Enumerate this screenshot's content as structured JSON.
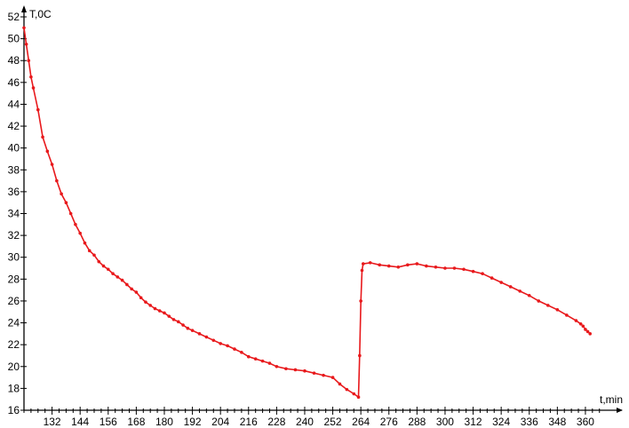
{
  "chart_data": {
    "type": "line",
    "title": "",
    "xlabel": "t,min",
    "ylabel": "T,0C",
    "xlim": [
      120,
      368
    ],
    "ylim": [
      16,
      52
    ],
    "xticks": [
      132,
      144,
      156,
      168,
      180,
      192,
      204,
      216,
      228,
      240,
      252,
      264,
      276,
      288,
      300,
      312,
      324,
      336,
      348,
      360
    ],
    "yticks": [
      16,
      18,
      20,
      22,
      24,
      26,
      28,
      30,
      32,
      34,
      36,
      38,
      40,
      42,
      44,
      46,
      48,
      50,
      52
    ],
    "grid": false,
    "colors": {
      "series": "#e8191c",
      "axis": "#000000"
    },
    "series": [
      {
        "x": [
          120,
          121,
          122,
          123,
          124,
          126,
          128,
          130,
          132,
          134,
          136,
          138,
          140,
          142,
          144,
          146,
          148,
          150,
          152,
          154,
          156,
          158,
          160,
          162,
          164,
          166,
          168,
          170,
          172,
          174,
          176,
          178,
          180,
          182,
          184,
          186,
          188,
          190,
          192,
          195,
          198,
          201,
          204,
          207,
          210,
          213,
          216,
          219,
          222,
          225,
          228,
          232,
          236,
          240,
          244,
          248,
          252,
          255,
          258,
          261,
          263,
          263.5,
          264,
          264.5,
          265,
          268,
          272,
          276,
          280,
          284,
          288,
          292,
          296,
          300,
          304,
          308,
          312,
          316,
          320,
          324,
          328,
          332,
          336,
          340,
          344,
          348,
          352,
          356,
          358,
          359,
          360,
          361,
          362
        ],
        "y": [
          51,
          49.5,
          48,
          46.5,
          45.5,
          43.5,
          41,
          39.7,
          38.5,
          37,
          35.8,
          35,
          34,
          33,
          32.2,
          31.3,
          30.6,
          30.2,
          29.6,
          29.2,
          28.9,
          28.5,
          28.2,
          27.9,
          27.5,
          27.1,
          26.8,
          26.3,
          25.9,
          25.6,
          25.3,
          25.1,
          24.9,
          24.6,
          24.3,
          24.1,
          23.8,
          23.5,
          23.3,
          23.0,
          22.7,
          22.4,
          22.1,
          21.9,
          21.6,
          21.3,
          20.9,
          20.7,
          20.5,
          20.3,
          20.0,
          19.8,
          19.7,
          19.6,
          19.4,
          19.2,
          19.0,
          18.4,
          17.9,
          17.5,
          17.2,
          21,
          26,
          28.8,
          29.4,
          29.5,
          29.3,
          29.2,
          29.1,
          29.3,
          29.4,
          29.2,
          29.1,
          29.0,
          29.0,
          28.9,
          28.7,
          28.5,
          28.1,
          27.7,
          27.3,
          26.9,
          26.5,
          26.0,
          25.6,
          25.2,
          24.7,
          24.2,
          23.9,
          23.7,
          23.4,
          23.2,
          23.0
        ]
      }
    ]
  }
}
